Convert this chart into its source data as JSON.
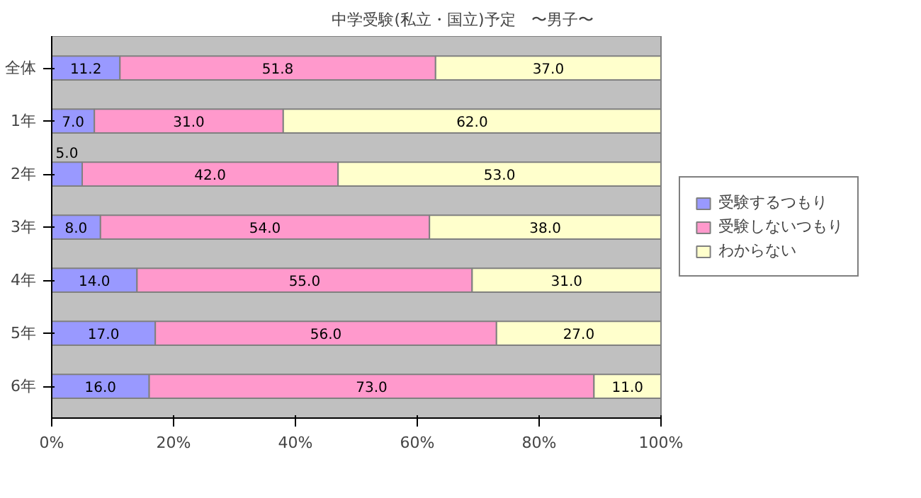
{
  "chart_data": {
    "type": "bar",
    "orientation": "horizontal",
    "stacked": true,
    "title": "中学受験(私立・国立)予定　〜男子〜",
    "categories": [
      "全体",
      "1年",
      "2年",
      "3年",
      "4年",
      "5年",
      "6年"
    ],
    "series": [
      {
        "name": "受験するつもり",
        "color": "#9999ff",
        "values": [
          11.2,
          7.0,
          5.0,
          8.0,
          14.0,
          17.0,
          16.0
        ],
        "value_labels": [
          "11.2",
          "7.0",
          "5.0",
          "8.0",
          "14.0",
          "17.0",
          "16.0"
        ]
      },
      {
        "name": "受験しないつもり",
        "color": "#ff99cc",
        "values": [
          51.8,
          31.0,
          42.0,
          54.0,
          55.0,
          56.0,
          73.0
        ],
        "value_labels": [
          "51.8",
          "31.0",
          "42.0",
          "54.0",
          "55.0",
          "56.0",
          "73.0"
        ]
      },
      {
        "name": "わからない",
        "color": "#ffffcc",
        "values": [
          37.0,
          62.0,
          53.0,
          38.0,
          31.0,
          27.0,
          11.0
        ],
        "value_labels": [
          "37.0",
          "62.0",
          "53.0",
          "38.0",
          "31.0",
          "27.0",
          "11.0"
        ]
      }
    ],
    "xlim": [
      0,
      100
    ],
    "xticks": [
      {
        "value": 0,
        "label": "0%"
      },
      {
        "value": 20,
        "label": "20%"
      },
      {
        "value": 40,
        "label": "40%"
      },
      {
        "value": 60,
        "label": "60%"
      },
      {
        "value": 80,
        "label": "80%"
      },
      {
        "value": 100,
        "label": "100%"
      }
    ],
    "grid": false,
    "legend": "right"
  }
}
